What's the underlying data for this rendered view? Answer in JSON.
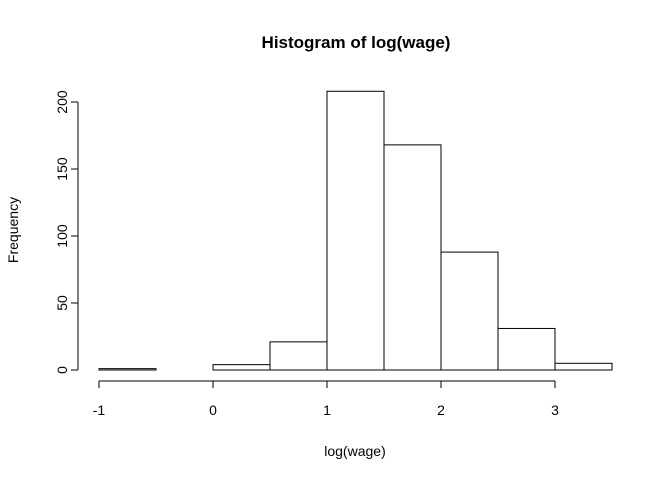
{
  "chart_data": {
    "type": "bar",
    "title": "Histogram of log(wage)",
    "xlabel": "log(wage)",
    "ylabel": "Frequency",
    "xlim": [
      -1,
      3.5
    ],
    "ylim": [
      0,
      210
    ],
    "bins": [
      {
        "start": -1.0,
        "end": -0.5,
        "count": 1
      },
      {
        "start": -0.5,
        "end": 0.0,
        "count": 0
      },
      {
        "start": 0.0,
        "end": 0.5,
        "count": 4
      },
      {
        "start": 0.5,
        "end": 1.0,
        "count": 21
      },
      {
        "start": 1.0,
        "end": 1.5,
        "count": 208
      },
      {
        "start": 1.5,
        "end": 2.0,
        "count": 168
      },
      {
        "start": 2.0,
        "end": 2.5,
        "count": 88
      },
      {
        "start": 2.5,
        "end": 3.0,
        "count": 31
      },
      {
        "start": 3.0,
        "end": 3.5,
        "count": 5
      }
    ],
    "x_ticks": [
      -1,
      0,
      1,
      2,
      3
    ],
    "x_tick_labels": [
      "-1",
      "0",
      "1",
      "2",
      "3"
    ],
    "y_ticks": [
      0,
      50,
      100,
      150,
      200
    ],
    "y_tick_labels": [
      "0",
      "50",
      "100",
      "150",
      "200"
    ],
    "grid": false,
    "legend": "none"
  }
}
